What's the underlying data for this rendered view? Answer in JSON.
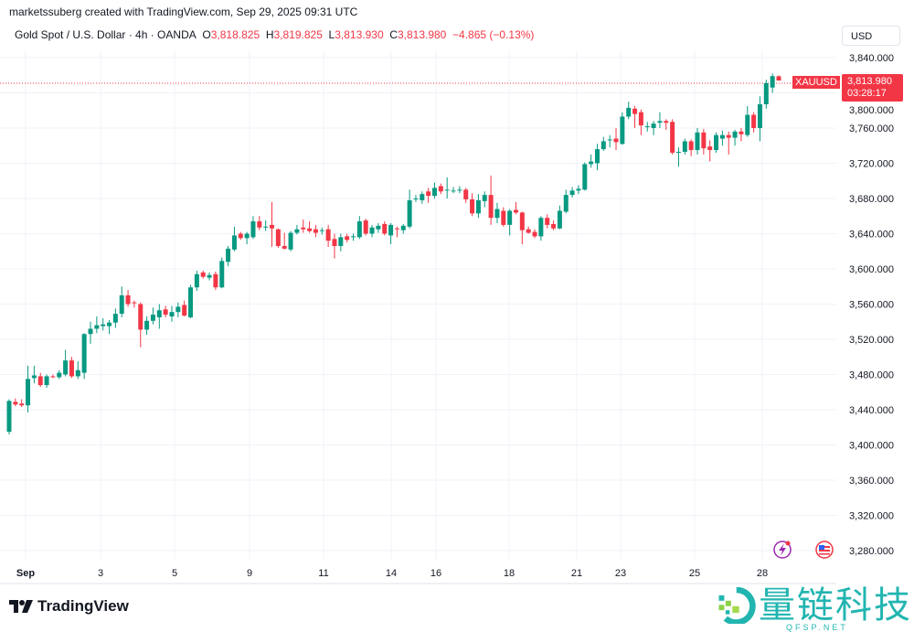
{
  "header": {
    "credit": "marketssuberg created with TradingView.com, Sep 29, 2025 09:31 UTC",
    "symbol_desc": "Gold Spot / U.S. Dollar · 4h · OANDA",
    "o_label": "O",
    "o_value": "3,818.825",
    "h_label": "H",
    "h_value": "3,819.825",
    "l_label": "L",
    "l_value": "3,813.930",
    "c_label": "C",
    "c_value": "3,813.980",
    "change": "−4.865 (−0.13%)"
  },
  "currency": "USD",
  "price_tag": {
    "symbol": "XAUUSD",
    "price": "3,813.980",
    "countdown": "03:28:17"
  },
  "colors": {
    "up": "#089981",
    "down": "#f23645",
    "grid": "#f0f3fa",
    "accent": "#f23645"
  },
  "footer": {
    "logo": "TradingView",
    "watermark": "量链科技",
    "watermark_sub": "QFSP.NET"
  },
  "icons": {
    "flash": "lightning-icon",
    "flag": "us-flag-icon"
  },
  "chart_data": {
    "type": "candlestick",
    "title": "Gold Spot / U.S. Dollar · 4h · OANDA",
    "interval": "4h",
    "ylim": [
      3260,
      3860
    ],
    "y_ticks": [
      3840,
      3800,
      3760,
      3720,
      3680,
      3640,
      3600,
      3560,
      3520,
      3480,
      3440,
      3400,
      3360,
      3320,
      3280
    ],
    "y_tick_labels": [
      "3,840.000",
      "3,800.000",
      "3,760.000",
      "3,720.000",
      "3,680.000",
      "3,640.000",
      "3,600.000",
      "3,560.000",
      "3,520.000",
      "3,480.000",
      "3,440.000",
      "3,400.000",
      "3,360.000",
      "3,320.000",
      "3,280.000"
    ],
    "x_tick_labels": [
      "Sep",
      "3",
      "5",
      "9",
      "11",
      "14",
      "16",
      "18",
      "21",
      "23",
      "25",
      "28"
    ],
    "grid": true,
    "last_price": 3813.98,
    "candles_ohlc": [
      [
        3415,
        3452,
        3412,
        3450
      ],
      [
        3449,
        3453,
        3444,
        3446
      ],
      [
        3447,
        3452,
        3443,
        3445
      ],
      [
        3445,
        3490,
        3437,
        3475
      ],
      [
        3476,
        3490,
        3470,
        3479
      ],
      [
        3478,
        3482,
        3466,
        3468
      ],
      [
        3468,
        3480,
        3465,
        3478
      ],
      [
        3478,
        3480,
        3476,
        3477
      ],
      [
        3477,
        3485,
        3475,
        3482
      ],
      [
        3480,
        3508,
        3478,
        3496
      ],
      [
        3496,
        3500,
        3476,
        3478
      ],
      [
        3478,
        3495,
        3475,
        3485
      ],
      [
        3482,
        3527,
        3475,
        3526
      ],
      [
        3526,
        3540,
        3515,
        3532
      ],
      [
        3532,
        3546,
        3527,
        3536
      ],
      [
        3535,
        3544,
        3530,
        3537
      ],
      [
        3535,
        3542,
        3526,
        3539
      ],
      [
        3539,
        3555,
        3533,
        3549
      ],
      [
        3549,
        3580,
        3545,
        3570
      ],
      [
        3570,
        3576,
        3557,
        3560
      ],
      [
        3562,
        3564,
        3556,
        3561
      ],
      [
        3560,
        3562,
        3511,
        3531
      ],
      [
        3531,
        3546,
        3525,
        3541
      ],
      [
        3541,
        3556,
        3537,
        3548
      ],
      [
        3545,
        3560,
        3532,
        3553
      ],
      [
        3554,
        3558,
        3545,
        3548
      ],
      [
        3546,
        3558,
        3540,
        3551
      ],
      [
        3551,
        3562,
        3545,
        3557
      ],
      [
        3559,
        3564,
        3546,
        3547
      ],
      [
        3545,
        3582,
        3544,
        3579
      ],
      [
        3579,
        3598,
        3575,
        3594
      ],
      [
        3596,
        3598,
        3589,
        3591
      ],
      [
        3590,
        3596,
        3587,
        3593
      ],
      [
        3594,
        3597,
        3576,
        3579
      ],
      [
        3579,
        3613,
        3578,
        3609
      ],
      [
        3608,
        3626,
        3603,
        3623
      ],
      [
        3622,
        3648,
        3620,
        3638
      ],
      [
        3640,
        3642,
        3633,
        3635
      ],
      [
        3635,
        3642,
        3628,
        3640
      ],
      [
        3636,
        3660,
        3634,
        3654
      ],
      [
        3654,
        3660,
        3644,
        3647
      ],
      [
        3648,
        3655,
        3643,
        3648
      ],
      [
        3650,
        3676,
        3625,
        3646
      ],
      [
        3645,
        3646,
        3624,
        3626
      ],
      [
        3626,
        3641,
        3622,
        3623
      ],
      [
        3622,
        3643,
        3620,
        3641
      ],
      [
        3641,
        3650,
        3639,
        3645
      ],
      [
        3647,
        3656,
        3641,
        3645
      ],
      [
        3646,
        3654,
        3641,
        3643
      ],
      [
        3645,
        3650,
        3636,
        3641
      ],
      [
        3644,
        3647,
        3639,
        3644
      ],
      [
        3645,
        3650,
        3625,
        3632
      ],
      [
        3634,
        3640,
        3612,
        3626
      ],
      [
        3626,
        3640,
        3620,
        3636
      ],
      [
        3637,
        3640,
        3630,
        3633
      ],
      [
        3636,
        3640,
        3632,
        3637
      ],
      [
        3636,
        3660,
        3634,
        3654
      ],
      [
        3655,
        3657,
        3638,
        3640
      ],
      [
        3640,
        3650,
        3636,
        3647
      ],
      [
        3645,
        3652,
        3641,
        3649
      ],
      [
        3651,
        3654,
        3638,
        3640
      ],
      [
        3638,
        3652,
        3628,
        3650
      ],
      [
        3646,
        3648,
        3636,
        3645
      ],
      [
        3644,
        3651,
        3640,
        3649
      ],
      [
        3648,
        3690,
        3646,
        3678
      ],
      [
        3680,
        3684,
        3676,
        3680
      ],
      [
        3678,
        3688,
        3674,
        3685
      ],
      [
        3688,
        3692,
        3675,
        3683
      ],
      [
        3683,
        3698,
        3680,
        3692
      ],
      [
        3694,
        3697,
        3685,
        3688
      ],
      [
        3690,
        3704,
        3680,
        3690
      ],
      [
        3689,
        3693,
        3686,
        3689
      ],
      [
        3690,
        3694,
        3686,
        3690
      ],
      [
        3690,
        3692,
        3675,
        3679
      ],
      [
        3679,
        3686,
        3660,
        3663
      ],
      [
        3663,
        3685,
        3658,
        3678
      ],
      [
        3677,
        3688,
        3670,
        3684
      ],
      [
        3684,
        3706,
        3650,
        3658
      ],
      [
        3658,
        3675,
        3652,
        3668
      ],
      [
        3666,
        3670,
        3648,
        3650
      ],
      [
        3650,
        3668,
        3638,
        3666
      ],
      [
        3667,
        3676,
        3662,
        3664
      ],
      [
        3664,
        3665,
        3628,
        3644
      ],
      [
        3645,
        3648,
        3640,
        3641
      ],
      [
        3642,
        3645,
        3635,
        3637
      ],
      [
        3637,
        3660,
        3632,
        3658
      ],
      [
        3658,
        3662,
        3646,
        3650
      ],
      [
        3651,
        3655,
        3644,
        3646
      ],
      [
        3646,
        3672,
        3645,
        3666
      ],
      [
        3665,
        3690,
        3663,
        3684
      ],
      [
        3684,
        3693,
        3681,
        3689
      ],
      [
        3689,
        3695,
        3685,
        3691
      ],
      [
        3690,
        3721,
        3689,
        3719
      ],
      [
        3719,
        3730,
        3715,
        3722
      ],
      [
        3720,
        3742,
        3712,
        3736
      ],
      [
        3736,
        3750,
        3734,
        3745
      ],
      [
        3746,
        3752,
        3738,
        3747
      ],
      [
        3748,
        3760,
        3735,
        3744
      ],
      [
        3742,
        3778,
        3741,
        3773
      ],
      [
        3773,
        3790,
        3770,
        3783
      ],
      [
        3782,
        3785,
        3760,
        3776
      ],
      [
        3778,
        3781,
        3752,
        3763
      ],
      [
        3762,
        3767,
        3756,
        3762
      ],
      [
        3760,
        3768,
        3752,
        3765
      ],
      [
        3766,
        3778,
        3760,
        3768
      ],
      [
        3768,
        3770,
        3758,
        3766
      ],
      [
        3767,
        3770,
        3730,
        3732
      ],
      [
        3733,
        3738,
        3716,
        3733
      ],
      [
        3733,
        3748,
        3730,
        3745
      ],
      [
        3745,
        3747,
        3728,
        3735
      ],
      [
        3735,
        3760,
        3730,
        3755
      ],
      [
        3755,
        3759,
        3730,
        3737
      ],
      [
        3739,
        3746,
        3722,
        3735
      ],
      [
        3735,
        3755,
        3732,
        3752
      ],
      [
        3748,
        3757,
        3740,
        3752
      ],
      [
        3752,
        3756,
        3730,
        3749
      ],
      [
        3749,
        3758,
        3740,
        3756
      ],
      [
        3756,
        3760,
        3745,
        3753
      ],
      [
        3752,
        3785,
        3750,
        3775
      ],
      [
        3775,
        3778,
        3755,
        3760
      ],
      [
        3760,
        3796,
        3745,
        3787
      ],
      [
        3787,
        3815,
        3782,
        3811
      ],
      [
        3806,
        3822,
        3800,
        3819
      ],
      [
        3818.825,
        3819.825,
        3813.93,
        3813.98
      ]
    ]
  }
}
